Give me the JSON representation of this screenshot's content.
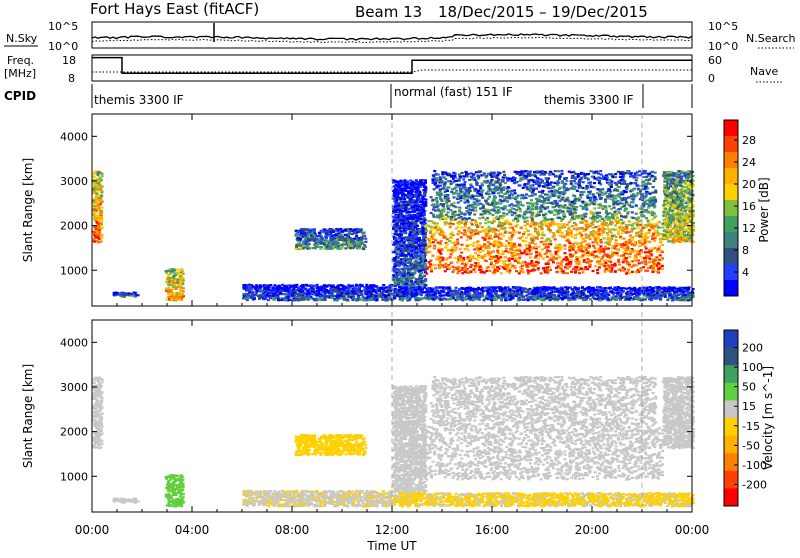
{
  "header": {
    "station": "Fort Hays East (fitACF)",
    "beam": "Beam 13",
    "date_range": "18/Dec/2015 – 19/Dec/2015"
  },
  "panel_labels": {
    "nsky": "N.Sky",
    "nsky_ticks": [
      "10^5",
      "10^0"
    ],
    "nsearch": "N.Search",
    "nsearch_ticks": [
      "10^5",
      "10^0"
    ],
    "freq": "Freq.",
    "freq_unit": "[MHz]",
    "freq_ticks": [
      "18",
      "8"
    ],
    "nave": "Nave",
    "nave_ticks": [
      "60",
      "0"
    ],
    "cpid": "CPID"
  },
  "cpid_segments": [
    {
      "label": "themis 3300 IF",
      "start_hr": 0,
      "end_hr": 12
    },
    {
      "label": "normal (fast) 151 IF",
      "start_hr": 12,
      "end_hr": 22
    },
    {
      "label": "themis 3300 IF",
      "start_hr": 19.5,
      "end_hr": 22
    }
  ],
  "axes": {
    "x_ticks": [
      "00:00",
      "04:00",
      "08:00",
      "12:00",
      "16:00",
      "20:00",
      "00:00"
    ],
    "x_tick_hours": [
      0,
      4,
      8,
      12,
      16,
      20,
      24
    ],
    "x_label": "Time UT",
    "y_label": "Slant Range [km]",
    "y_ticks": [
      "1000",
      "2000",
      "3000",
      "4000"
    ],
    "y_tick_values": [
      1000,
      2000,
      3000,
      4000
    ],
    "y_range": [
      200,
      4500
    ]
  },
  "colorbars": {
    "power": {
      "label": "Power [dB]",
      "ticks": [
        "28",
        "24",
        "20",
        "16",
        "12",
        "8",
        "4"
      ],
      "colors": [
        "#ff0000",
        "#ff4000",
        "#ff7f00",
        "#ffb000",
        "#ffd000",
        "#80c040",
        "#40a060",
        "#408080",
        "#305080",
        "#2040ff",
        "#0000ff"
      ]
    },
    "velocity": {
      "label": "Velocity [m s^-1]",
      "ticks": [
        "200",
        "100",
        "50",
        "15",
        "-15",
        "-50",
        "-100",
        "-200"
      ],
      "colors": [
        "#2040c0",
        "#305080",
        "#40a060",
        "#60d040",
        "#c8c8c8",
        "#ffd000",
        "#ffb000",
        "#ff8000",
        "#ff4000",
        "#ff0000"
      ]
    }
  },
  "chart_data": {
    "type": "heatmap",
    "title": "Fort Hays East (fitACF) Beam 13 18/Dec/2015 – 19/Dec/2015",
    "xlabel": "Time UT",
    "ylabel": "Slant Range [km]",
    "xlim_hours": [
      0,
      24
    ],
    "ylim_km": [
      200,
      4500
    ],
    "vertical_markers_hours": [
      12,
      22
    ],
    "freq_series": {
      "levels": [
        {
          "t0": 0,
          "t1": 1.2,
          "freq": 17
        },
        {
          "t0": 1.2,
          "t1": 12.8,
          "freq": 11
        },
        {
          "t0": 12.8,
          "t1": 24,
          "freq": 16
        }
      ]
    },
    "echo_regions": [
      {
        "t0": 0.0,
        "t1": 0.35,
        "r0": 1600,
        "r1": 3200,
        "power": 24,
        "velocity": 0
      },
      {
        "t0": 0.8,
        "t1": 1.8,
        "r0": 380,
        "r1": 480,
        "power": 10,
        "velocity": 0
      },
      {
        "t0": 2.9,
        "t1": 3.6,
        "r0": 300,
        "r1": 1000,
        "power": 22,
        "velocity": 30
      },
      {
        "t0": 8.1,
        "t1": 10.9,
        "r0": 1450,
        "r1": 1900,
        "power": 12,
        "velocity": -30
      },
      {
        "t0": 6.0,
        "t1": 12.0,
        "r0": 300,
        "r1": 650,
        "power": 8,
        "velocity": -10
      },
      {
        "t0": 12.0,
        "t1": 13.3,
        "r0": 600,
        "r1": 3000,
        "power": 8,
        "velocity": 0
      },
      {
        "t0": 13.3,
        "t1": 22.8,
        "r0": 900,
        "r1": 2100,
        "power": 26,
        "velocity": 0
      },
      {
        "t0": 13.5,
        "t1": 22.5,
        "r0": 2100,
        "r1": 3200,
        "power": 12,
        "velocity": 0
      },
      {
        "t0": 22.8,
        "t1": 24.0,
        "r0": 1600,
        "r1": 3200,
        "power": 18,
        "velocity": 0
      },
      {
        "t0": 12.0,
        "t1": 24.0,
        "r0": 300,
        "r1": 600,
        "power": 8,
        "velocity": -20
      }
    ]
  }
}
